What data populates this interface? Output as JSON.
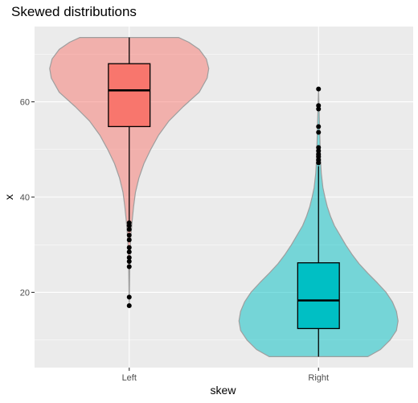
{
  "chart_data": {
    "type": "violin",
    "title": "Skewed distributions",
    "xlabel": "skew",
    "ylabel": "x",
    "categories": [
      "Left",
      "Right"
    ],
    "ylim": [
      4.2,
      75.8
    ],
    "yticks": [
      20,
      40,
      60
    ],
    "grid": true,
    "legend": "none",
    "series": [
      {
        "category": "Left",
        "color": "#f8766d",
        "box": {
          "min": 35.1,
          "q1": 54.8,
          "median": 62.4,
          "q3": 68.0,
          "max": 73.5
        },
        "outliers": [
          17.2,
          19.0,
          25.4,
          26.5,
          27.3,
          28.5,
          29.4,
          31.0,
          32.0,
          33.2,
          34.0,
          34.6
        ],
        "range": [
          17.2,
          73.5
        ],
        "density": [
          [
            17.2,
            0.0
          ],
          [
            20,
            0.003
          ],
          [
            25,
            0.007
          ],
          [
            30,
            0.015
          ],
          [
            32,
            0.022
          ],
          [
            35,
            0.037
          ],
          [
            38,
            0.055
          ],
          [
            41,
            0.078
          ],
          [
            44,
            0.122
          ],
          [
            47,
            0.185
          ],
          [
            50,
            0.27
          ],
          [
            53,
            0.37
          ],
          [
            56,
            0.5
          ],
          [
            59,
            0.68
          ],
          [
            62,
            0.88
          ],
          [
            65,
            0.98
          ],
          [
            67,
            1.0
          ],
          [
            69,
            0.97
          ],
          [
            71,
            0.88
          ],
          [
            72.5,
            0.75
          ],
          [
            73.5,
            0.62
          ]
        ]
      },
      {
        "category": "Right",
        "color": "#00bfc4",
        "box": {
          "min": 6.5,
          "q1": 12.4,
          "median": 18.3,
          "q3": 26.2,
          "max": 46.5
        },
        "outliers": [
          47.2,
          47.8,
          48.5,
          49.0,
          49.7,
          50.4,
          53.6,
          54.8,
          58.5,
          59.2,
          62.7
        ],
        "range": [
          6.5,
          62.7
        ],
        "density": [
          [
            6.5,
            0.62
          ],
          [
            8,
            0.78
          ],
          [
            10,
            0.9
          ],
          [
            12,
            0.98
          ],
          [
            14,
            1.0
          ],
          [
            16,
            0.98
          ],
          [
            18,
            0.93
          ],
          [
            20,
            0.85
          ],
          [
            22,
            0.74
          ],
          [
            24,
            0.62
          ],
          [
            26,
            0.51
          ],
          [
            28,
            0.42
          ],
          [
            30,
            0.34
          ],
          [
            32,
            0.27
          ],
          [
            34,
            0.2
          ],
          [
            36,
            0.15
          ],
          [
            38,
            0.11
          ],
          [
            40,
            0.08
          ],
          [
            42,
            0.055
          ],
          [
            45,
            0.035
          ],
          [
            48,
            0.025
          ],
          [
            50,
            0.022
          ],
          [
            52,
            0.018
          ],
          [
            55,
            0.013
          ],
          [
            58,
            0.008
          ],
          [
            60,
            0.005
          ],
          [
            62.7,
            0.0
          ]
        ]
      }
    ]
  }
}
